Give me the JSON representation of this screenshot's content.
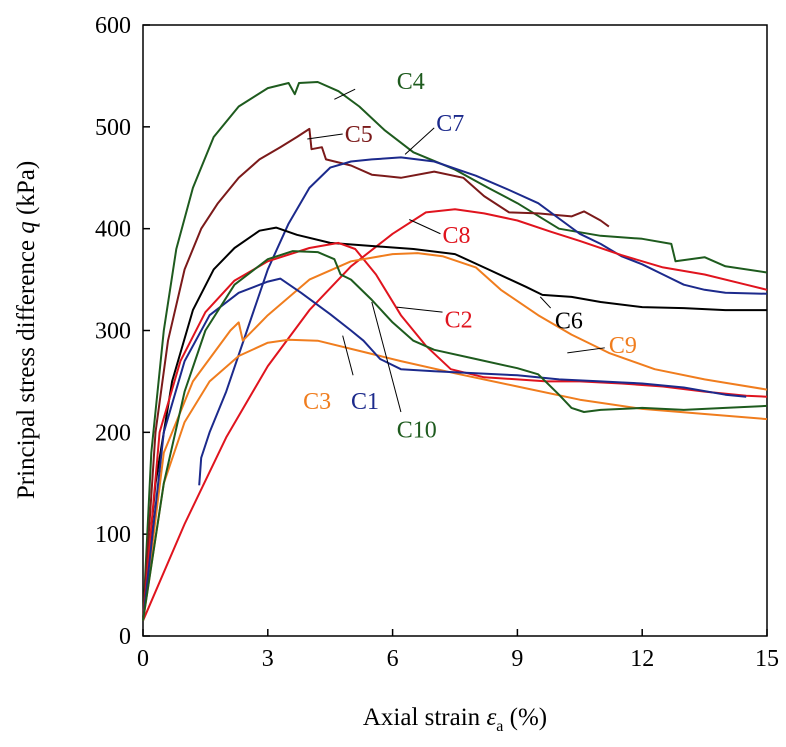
{
  "chart_data": {
    "type": "line",
    "title": "",
    "xlabel": {
      "prefix": "Axial strain ",
      "symbol": "ε",
      "subscript": "a",
      "suffix": " (%)"
    },
    "ylabel": {
      "prefix": "Principal stress difference ",
      "symbol": "q",
      "suffix": " (kPa)"
    },
    "xlim": [
      0,
      15
    ],
    "ylim": [
      0,
      600
    ],
    "xticks": [
      0,
      3,
      6,
      9,
      12,
      15
    ],
    "yticks": [
      0,
      100,
      200,
      300,
      400,
      500,
      600
    ],
    "grid": false,
    "legend": "inline labels",
    "series": [
      {
        "name": "C4",
        "color": "#1E5B1E",
        "label_at": [
          6.1,
          545
        ],
        "leader_from": [
          5.1,
          537
        ],
        "leader_to": [
          4.6,
          527
        ],
        "points": [
          [
            0,
            15
          ],
          [
            0.2,
            180
          ],
          [
            0.5,
            300
          ],
          [
            0.8,
            380
          ],
          [
            1.2,
            440
          ],
          [
            1.7,
            490
          ],
          [
            2.3,
            520
          ],
          [
            3,
            538
          ],
          [
            3.5,
            543
          ],
          [
            3.65,
            532
          ],
          [
            3.75,
            543
          ],
          [
            4.2,
            544
          ],
          [
            4.7,
            535
          ],
          [
            5.2,
            520
          ],
          [
            5.8,
            497
          ],
          [
            6.5,
            475
          ],
          [
            7.5,
            458
          ],
          [
            8.3,
            440
          ],
          [
            9,
            425
          ],
          [
            10,
            400
          ],
          [
            11,
            393
          ],
          [
            12,
            390
          ],
          [
            12.7,
            385
          ],
          [
            12.8,
            368
          ],
          [
            13.5,
            372
          ],
          [
            14,
            363
          ],
          [
            15,
            357
          ]
        ]
      },
      {
        "name": "C5",
        "color": "#7B1A1A",
        "label_at": [
          4.85,
          493
        ],
        "leader_from": [
          4.8,
          493
        ],
        "leader_to": [
          3.95,
          488
        ],
        "points": [
          [
            0,
            15
          ],
          [
            0.3,
            200
          ],
          [
            0.6,
            290
          ],
          [
            1,
            360
          ],
          [
            1.4,
            400
          ],
          [
            1.8,
            425
          ],
          [
            2.3,
            450
          ],
          [
            2.8,
            468
          ],
          [
            3.3,
            480
          ],
          [
            3.7,
            490
          ],
          [
            4,
            498
          ],
          [
            4.05,
            478
          ],
          [
            4.3,
            480
          ],
          [
            4.4,
            468
          ],
          [
            5,
            462
          ],
          [
            5.5,
            453
          ],
          [
            6.2,
            450
          ],
          [
            7,
            456
          ],
          [
            7.7,
            450
          ],
          [
            8.2,
            432
          ],
          [
            8.8,
            416
          ],
          [
            9.5,
            415
          ],
          [
            10.3,
            412
          ],
          [
            10.6,
            417
          ],
          [
            11,
            408
          ],
          [
            11.2,
            402
          ]
        ]
      },
      {
        "name": "C7",
        "color": "#1C2A8C",
        "label_at": [
          7.05,
          504
        ],
        "leader_from": [
          7.0,
          499
        ],
        "leader_to": [
          6.3,
          473
        ],
        "points": [
          [
            1.35,
            148
          ],
          [
            1.4,
            175
          ],
          [
            1.6,
            200
          ],
          [
            2,
            240
          ],
          [
            2.5,
            300
          ],
          [
            3,
            360
          ],
          [
            3.5,
            405
          ],
          [
            4,
            440
          ],
          [
            4.5,
            460
          ],
          [
            5,
            466
          ],
          [
            5.5,
            468
          ],
          [
            6.2,
            470
          ],
          [
            7,
            466
          ],
          [
            8,
            452
          ],
          [
            8.8,
            438
          ],
          [
            9.5,
            425
          ],
          [
            10,
            410
          ],
          [
            10.5,
            395
          ],
          [
            11,
            385
          ],
          [
            11.5,
            373
          ],
          [
            12,
            365
          ],
          [
            12.5,
            355
          ],
          [
            13,
            345
          ],
          [
            13.5,
            340
          ],
          [
            14,
            337
          ],
          [
            15,
            336
          ]
        ]
      },
      {
        "name": "C8",
        "color": "#E0141E",
        "label_at": [
          7.2,
          394
        ],
        "leader_from": [
          7.15,
          395
        ],
        "leader_to": [
          6.4,
          409
        ],
        "points": [
          [
            0,
            15
          ],
          [
            1,
            110
          ],
          [
            2,
            195
          ],
          [
            3,
            265
          ],
          [
            4,
            320
          ],
          [
            5,
            363
          ],
          [
            6,
            395
          ],
          [
            6.8,
            416
          ],
          [
            7.5,
            419
          ],
          [
            8.2,
            415
          ],
          [
            9,
            408
          ],
          [
            9.8,
            397
          ],
          [
            10.5,
            388
          ],
          [
            11.5,
            374
          ],
          [
            12.5,
            362
          ],
          [
            13.5,
            355
          ],
          [
            14.5,
            345
          ],
          [
            15,
            340
          ]
        ]
      },
      {
        "name": "C6",
        "color": "#000000",
        "label_at": [
          9.9,
          310
        ],
        "leader_from": [
          9.8,
          322
        ],
        "leader_to": [
          9.55,
          333
        ],
        "points": [
          [
            0,
            15
          ],
          [
            0.3,
            150
          ],
          [
            0.7,
            250
          ],
          [
            1.2,
            320
          ],
          [
            1.7,
            360
          ],
          [
            2.2,
            381
          ],
          [
            2.8,
            398
          ],
          [
            3.2,
            401
          ],
          [
            3.7,
            394
          ],
          [
            4.5,
            386
          ],
          [
            5.5,
            383
          ],
          [
            6.5,
            380
          ],
          [
            7.5,
            375
          ],
          [
            8.3,
            360
          ],
          [
            9.2,
            343
          ],
          [
            9.6,
            335
          ],
          [
            10.3,
            333
          ],
          [
            11,
            328
          ],
          [
            12,
            323
          ],
          [
            13,
            322
          ],
          [
            14,
            320
          ],
          [
            15,
            320
          ]
        ]
      },
      {
        "name": "C2",
        "color": "#E0141E",
        "label_at": [
          7.25,
          311
        ],
        "leader_from": [
          7.2,
          318
        ],
        "leader_to": [
          6.1,
          323
        ],
        "points": [
          [
            0,
            15
          ],
          [
            0.4,
            200
          ],
          [
            0.9,
            270
          ],
          [
            1.5,
            318
          ],
          [
            2.2,
            349
          ],
          [
            3,
            368
          ],
          [
            4,
            381
          ],
          [
            4.7,
            386
          ],
          [
            5.1,
            380
          ],
          [
            5.6,
            355
          ],
          [
            6.2,
            315
          ],
          [
            6.8,
            285
          ],
          [
            7.4,
            262
          ],
          [
            8.2,
            254
          ],
          [
            9,
            252
          ],
          [
            9.7,
            250
          ],
          [
            10.5,
            250
          ],
          [
            11.5,
            248
          ],
          [
            12.5,
            245
          ],
          [
            13.5,
            240
          ],
          [
            14.5,
            236
          ],
          [
            15,
            235
          ]
        ]
      },
      {
        "name": "C9",
        "color": "#F07D1E",
        "label_at": [
          11.2,
          286
        ],
        "leader_from": [
          11.1,
          283
        ],
        "leader_to": [
          10.2,
          278
        ],
        "points": [
          [
            0,
            15
          ],
          [
            0.5,
            180
          ],
          [
            1.2,
            250
          ],
          [
            2.1,
            300
          ],
          [
            2.3,
            308
          ],
          [
            2.4,
            290
          ],
          [
            3,
            315
          ],
          [
            4,
            350
          ],
          [
            5,
            368
          ],
          [
            6,
            375
          ],
          [
            6.6,
            376
          ],
          [
            7.2,
            373
          ],
          [
            8,
            362
          ],
          [
            8.6,
            340
          ],
          [
            9.5,
            315
          ],
          [
            10.3,
            296
          ],
          [
            11.2,
            278
          ],
          [
            12.3,
            262
          ],
          [
            13.5,
            252
          ],
          [
            15,
            242
          ]
        ]
      },
      {
        "name": "C3",
        "color": "#F07D1E",
        "label_at": [
          3.85,
          231
        ],
        "leader_from": null,
        "leader_to": null,
        "points": [
          [
            0,
            15
          ],
          [
            0.5,
            150
          ],
          [
            1,
            210
          ],
          [
            1.6,
            250
          ],
          [
            2.3,
            275
          ],
          [
            3,
            288
          ],
          [
            3.5,
            291
          ],
          [
            4.2,
            290
          ],
          [
            5.2,
            280
          ],
          [
            6.2,
            270
          ],
          [
            7.5,
            258
          ],
          [
            9,
            245
          ],
          [
            10.5,
            232
          ],
          [
            12,
            223
          ],
          [
            13.5,
            218
          ],
          [
            15,
            213
          ]
        ]
      },
      {
        "name": "C1",
        "color": "#1C2A8C",
        "label_at": [
          5.0,
          231
        ],
        "leader_from": [
          5.05,
          256
        ],
        "leader_to": [
          4.8,
          295
        ],
        "points": [
          [
            0,
            15
          ],
          [
            0.5,
            200
          ],
          [
            1,
            270
          ],
          [
            1.6,
            315
          ],
          [
            2.3,
            337
          ],
          [
            3,
            348
          ],
          [
            3.3,
            351
          ],
          [
            3.8,
            337
          ],
          [
            4.5,
            316
          ],
          [
            5,
            300
          ],
          [
            5.3,
            290
          ],
          [
            5.7,
            272
          ],
          [
            6.2,
            262
          ],
          [
            7,
            260
          ],
          [
            8,
            258
          ],
          [
            9,
            256
          ],
          [
            10,
            252
          ],
          [
            11,
            250
          ],
          [
            12,
            248
          ],
          [
            13,
            244
          ],
          [
            14,
            237
          ],
          [
            14.5,
            235
          ]
        ]
      },
      {
        "name": "C10",
        "color": "#1E5B1E",
        "label_at": [
          6.1,
          203
        ],
        "leader_from": [
          6.2,
          220
        ],
        "leader_to": [
          5.5,
          328
        ],
        "points": [
          [
            0,
            15
          ],
          [
            0.5,
            150
          ],
          [
            1,
            240
          ],
          [
            1.5,
            300
          ],
          [
            2.2,
            345
          ],
          [
            3,
            370
          ],
          [
            3.6,
            378
          ],
          [
            4.2,
            377
          ],
          [
            4.6,
            370
          ],
          [
            4.75,
            355
          ],
          [
            5,
            350
          ],
          [
            5.5,
            330
          ],
          [
            6,
            308
          ],
          [
            6.5,
            290
          ],
          [
            7,
            281
          ],
          [
            8,
            272
          ],
          [
            9,
            263
          ],
          [
            9.5,
            257
          ],
          [
            10,
            237
          ],
          [
            10.3,
            224
          ],
          [
            10.6,
            220
          ],
          [
            11,
            222
          ],
          [
            12,
            224
          ],
          [
            13,
            222
          ],
          [
            14,
            224
          ],
          [
            15,
            226
          ]
        ]
      }
    ]
  }
}
